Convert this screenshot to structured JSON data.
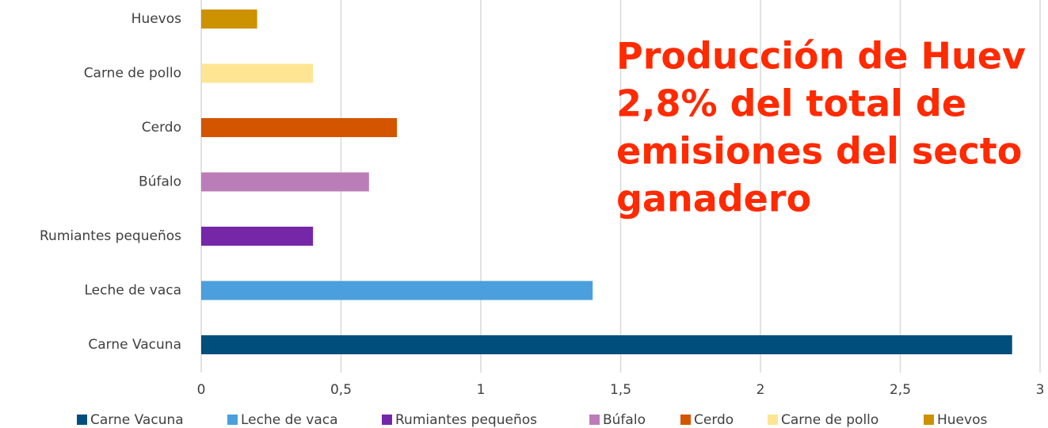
{
  "chart_data": {
    "type": "bar",
    "orientation": "horizontal",
    "categories": [
      "Carne Vacuna",
      "Leche de vaca",
      "Rumiantes pequeños",
      "Búfalo",
      "Cerdo",
      "Carne de pollo",
      "Huevos"
    ],
    "values": [
      2.9,
      1.4,
      0.4,
      0.6,
      0.7,
      0.4,
      0.2
    ],
    "colors": [
      "#004e7c",
      "#4a9fdc",
      "#7627a8",
      "#bb7db8",
      "#d45500",
      "#fde594",
      "#cc9200"
    ],
    "xlim": [
      0,
      3
    ],
    "xticks": [
      0,
      {
        "value": 0.5,
        "label": "0,5"
      },
      1,
      {
        "value": 1.5,
        "label": "1,5"
      },
      2,
      {
        "value": 2.5,
        "label": "2,5"
      },
      3
    ],
    "grid": true,
    "legend": "bottom",
    "annotation": [
      "Producción de Huev",
      "2,8% del total de",
      "emisiones del secto",
      "ganadero"
    ]
  }
}
